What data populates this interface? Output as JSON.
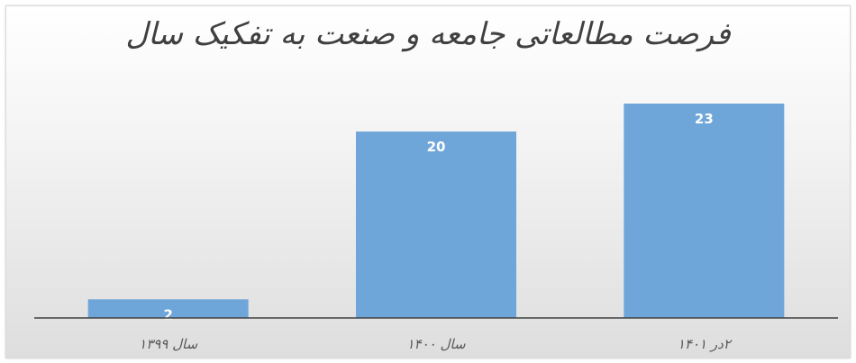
{
  "chart_data": {
    "type": "bar",
    "title": "فرصت مطالعاتی جامعه و صنعت به تفکیک سال",
    "categories": [
      "سال ۱۳۹۹",
      "سال ۱۴۰۰",
      "۲در ۱۴۰۱"
    ],
    "values": [
      2,
      20,
      23
    ],
    "xlabel": "",
    "ylabel": "",
    "ylim": [
      0,
      23
    ],
    "grid": false,
    "legend": "none",
    "bar_color": "#6fa6d9",
    "label_color": "#ffffff",
    "axis_color": "#404040",
    "tick_color": "#595959"
  }
}
